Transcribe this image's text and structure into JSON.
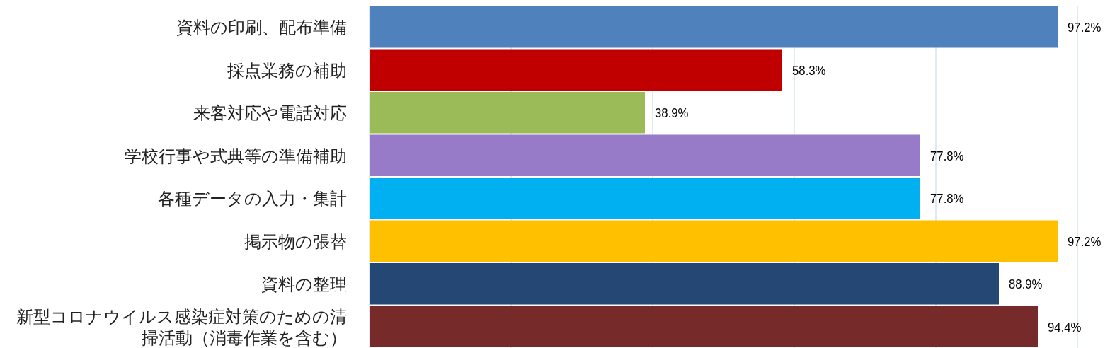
{
  "chart_data": {
    "type": "bar",
    "orientation": "horizontal",
    "categories": [
      "資料の印刷、配布準備",
      "採点業務の補助",
      "来客対応や電話対応",
      "学校行事や式典等の準備補助",
      "各種データの入力・集計",
      "掲示物の張替",
      "資料の整理",
      "新型コロナウイルス感染症対策のための清掃活動（消毒作業を含む）"
    ],
    "values": [
      97.2,
      58.3,
      38.9,
      77.8,
      77.8,
      97.2,
      88.9,
      94.4
    ],
    "colors": [
      "#4f81bd",
      "#c00000",
      "#9bbb59",
      "#977bc8",
      "#00b0f0",
      "#ffc000",
      "#254774",
      "#772a2a"
    ],
    "value_labels": [
      "97.2%",
      "58.3%",
      "38.9%",
      "77.8%",
      "77.8%",
      "97.2%",
      "88.9%",
      "94.4%"
    ],
    "xlim": [
      0,
      100
    ],
    "xticks": [
      {
        "value": 0,
        "label": null
      },
      {
        "value": 20,
        "label": null
      },
      {
        "value": 40,
        "label": null
      },
      {
        "value": 60,
        "label": null
      },
      {
        "value": 80,
        "label": null
      },
      {
        "value": 100,
        "label": null
      }
    ],
    "grid": "x",
    "tick_labels": "y"
  }
}
